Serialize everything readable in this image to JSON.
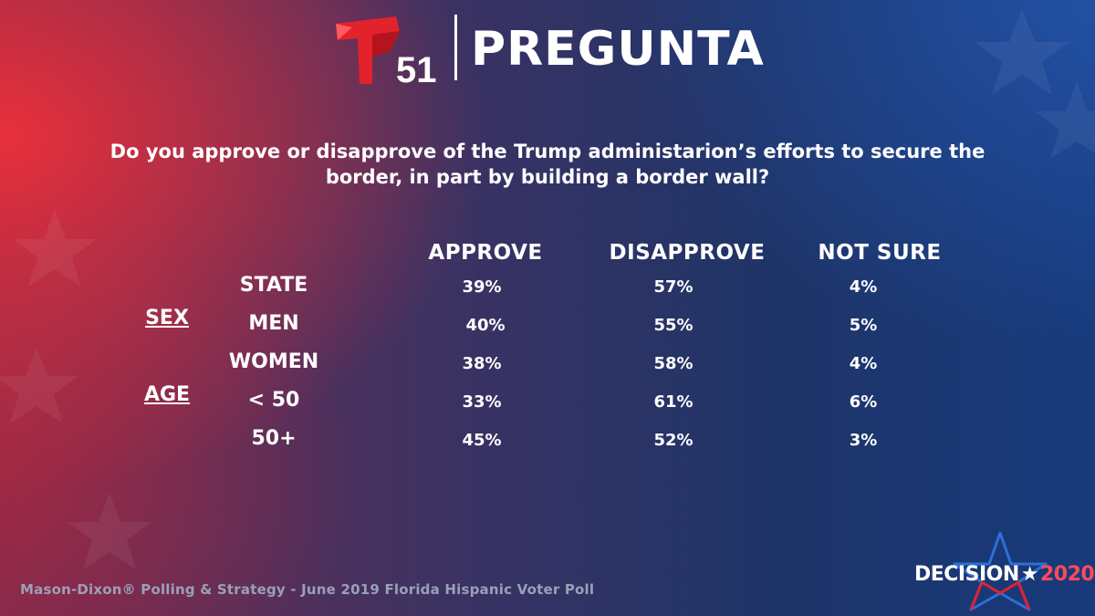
{
  "header": {
    "logo_number": "51",
    "title": "PREGUNTA"
  },
  "question": "Do you approve or disapprove of the Trump administarion’s efforts to secure the border, in part by building a border wall?",
  "chart_data": {
    "type": "table",
    "columns": [
      "APPROVE",
      "DISAPPROVE",
      "NOT SURE"
    ],
    "groups": [
      "SEX",
      "AGE"
    ],
    "rows": [
      {
        "label": "STATE",
        "values": [
          "39%",
          "57%",
          "4%"
        ]
      },
      {
        "label": "MEN",
        "values": [
          "40%",
          "55%",
          "5%"
        ]
      },
      {
        "label": "WOMEN",
        "values": [
          "38%",
          "58%",
          "4%"
        ]
      },
      {
        "label": "< 50",
        "values": [
          "33%",
          "61%",
          "6%"
        ]
      },
      {
        "label": "50+",
        "values": [
          "45%",
          "52%",
          "3%"
        ]
      }
    ]
  },
  "footer": {
    "source": "Mason-Dixon® Polling & Strategy - June 2019 Florida Hispanic Voter Poll",
    "badge_word": "DECISION",
    "badge_star": "★",
    "badge_year": "2020"
  },
  "colors": {
    "red": "#ee303a",
    "blue": "#173a7c",
    "accent_red": "#ff4a5a"
  }
}
